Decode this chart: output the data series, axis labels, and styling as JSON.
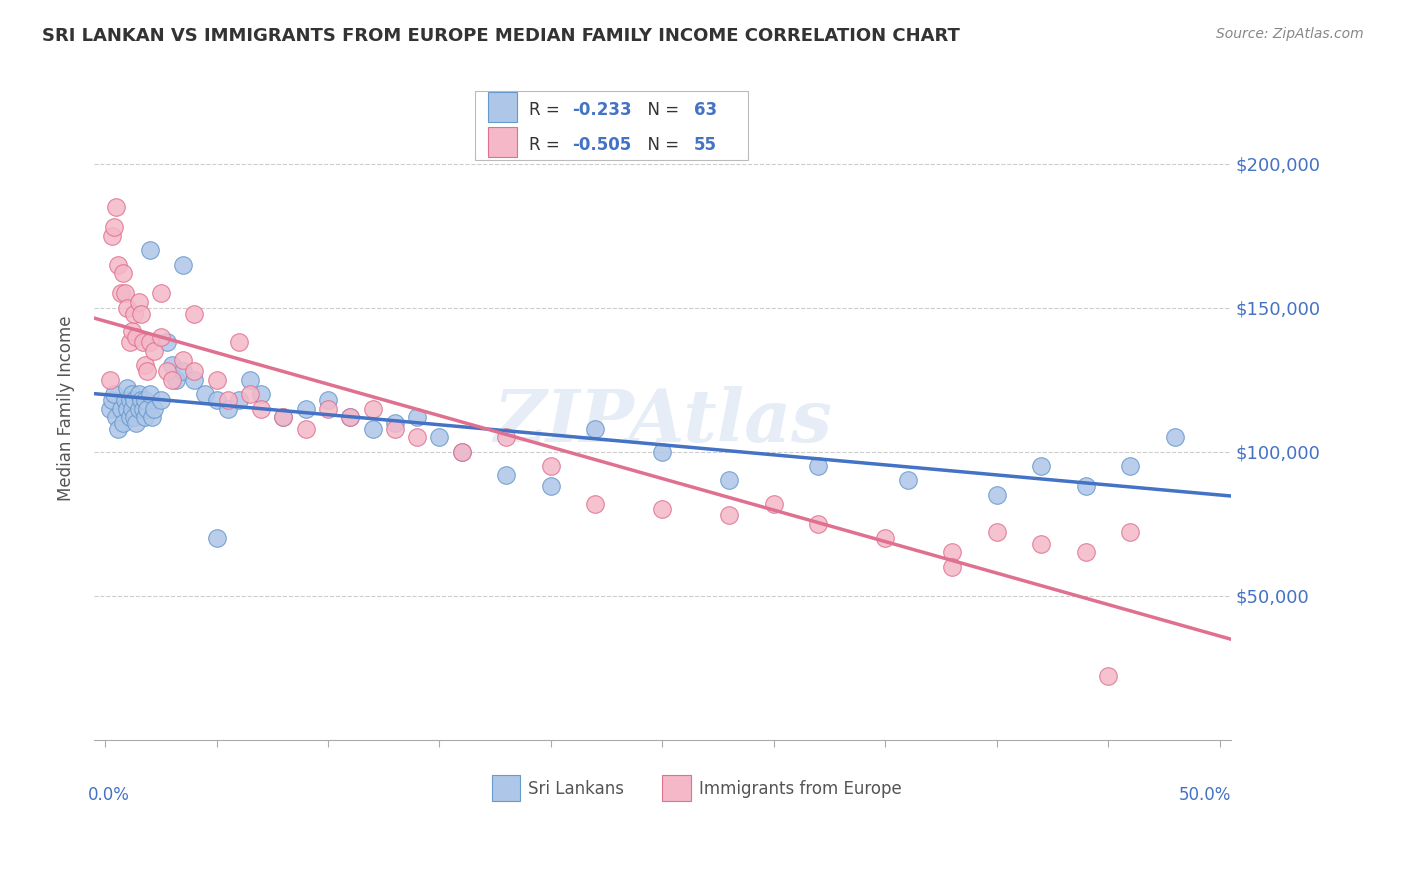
{
  "title": "SRI LANKAN VS IMMIGRANTS FROM EUROPE MEDIAN FAMILY INCOME CORRELATION CHART",
  "source": "Source: ZipAtlas.com",
  "ylabel": "Median Family Income",
  "y_ticks": [
    50000,
    100000,
    150000,
    200000
  ],
  "y_tick_labels": [
    "$50,000",
    "$100,000",
    "$150,000",
    "$200,000"
  ],
  "x_ticks": [
    0.0,
    0.05,
    0.1,
    0.15,
    0.2,
    0.25,
    0.3,
    0.35,
    0.4,
    0.45,
    0.5
  ],
  "xlim": [
    -0.005,
    0.505
  ],
  "ylim": [
    0,
    230000
  ],
  "sri_lankan_color": "#aec6e8",
  "sri_lankan_edge": "#6699cc",
  "immigrants_color": "#f4b8c8",
  "immigrants_edge": "#e07090",
  "line_blue": "#4472c4",
  "line_pink": "#e07090",
  "watermark": "ZIPAtlas",
  "sri_lankan_R": "-0.233",
  "sri_lankan_N": "63",
  "immigrants_R": "-0.505",
  "immigrants_N": "55",
  "sri_lankans_x": [
    0.002,
    0.003,
    0.004,
    0.005,
    0.006,
    0.007,
    0.008,
    0.009,
    0.01,
    0.01,
    0.011,
    0.011,
    0.012,
    0.012,
    0.013,
    0.013,
    0.014,
    0.015,
    0.015,
    0.016,
    0.017,
    0.018,
    0.018,
    0.019,
    0.02,
    0.021,
    0.022,
    0.025,
    0.028,
    0.03,
    0.032,
    0.035,
    0.04,
    0.045,
    0.05,
    0.055,
    0.06,
    0.065,
    0.07,
    0.08,
    0.09,
    0.1,
    0.11,
    0.12,
    0.13,
    0.14,
    0.15,
    0.16,
    0.18,
    0.2,
    0.22,
    0.25,
    0.28,
    0.32,
    0.36,
    0.4,
    0.42,
    0.44,
    0.46,
    0.48,
    0.02,
    0.035,
    0.05
  ],
  "sri_lankans_y": [
    115000,
    118000,
    120000,
    112000,
    108000,
    115000,
    110000,
    118000,
    122000,
    115000,
    118000,
    112000,
    120000,
    115000,
    118000,
    112000,
    110000,
    120000,
    115000,
    118000,
    115000,
    112000,
    118000,
    115000,
    120000,
    112000,
    115000,
    118000,
    138000,
    130000,
    125000,
    128000,
    125000,
    120000,
    118000,
    115000,
    118000,
    125000,
    120000,
    112000,
    115000,
    118000,
    112000,
    108000,
    110000,
    112000,
    105000,
    100000,
    92000,
    88000,
    108000,
    100000,
    90000,
    95000,
    90000,
    85000,
    95000,
    88000,
    95000,
    105000,
    170000,
    165000,
    70000
  ],
  "immigrants_x": [
    0.002,
    0.003,
    0.004,
    0.005,
    0.006,
    0.007,
    0.008,
    0.009,
    0.01,
    0.011,
    0.012,
    0.013,
    0.014,
    0.015,
    0.016,
    0.017,
    0.018,
    0.019,
    0.02,
    0.022,
    0.025,
    0.028,
    0.03,
    0.035,
    0.04,
    0.05,
    0.055,
    0.065,
    0.07,
    0.08,
    0.09,
    0.1,
    0.11,
    0.12,
    0.13,
    0.14,
    0.16,
    0.18,
    0.2,
    0.22,
    0.25,
    0.28,
    0.3,
    0.32,
    0.35,
    0.38,
    0.4,
    0.42,
    0.44,
    0.46,
    0.025,
    0.04,
    0.06,
    0.38,
    0.45
  ],
  "immigrants_y": [
    125000,
    175000,
    178000,
    185000,
    165000,
    155000,
    162000,
    155000,
    150000,
    138000,
    142000,
    148000,
    140000,
    152000,
    148000,
    138000,
    130000,
    128000,
    138000,
    135000,
    140000,
    128000,
    125000,
    132000,
    128000,
    125000,
    118000,
    120000,
    115000,
    112000,
    108000,
    115000,
    112000,
    115000,
    108000,
    105000,
    100000,
    105000,
    95000,
    82000,
    80000,
    78000,
    82000,
    75000,
    70000,
    65000,
    72000,
    68000,
    65000,
    72000,
    155000,
    148000,
    138000,
    60000,
    22000
  ]
}
